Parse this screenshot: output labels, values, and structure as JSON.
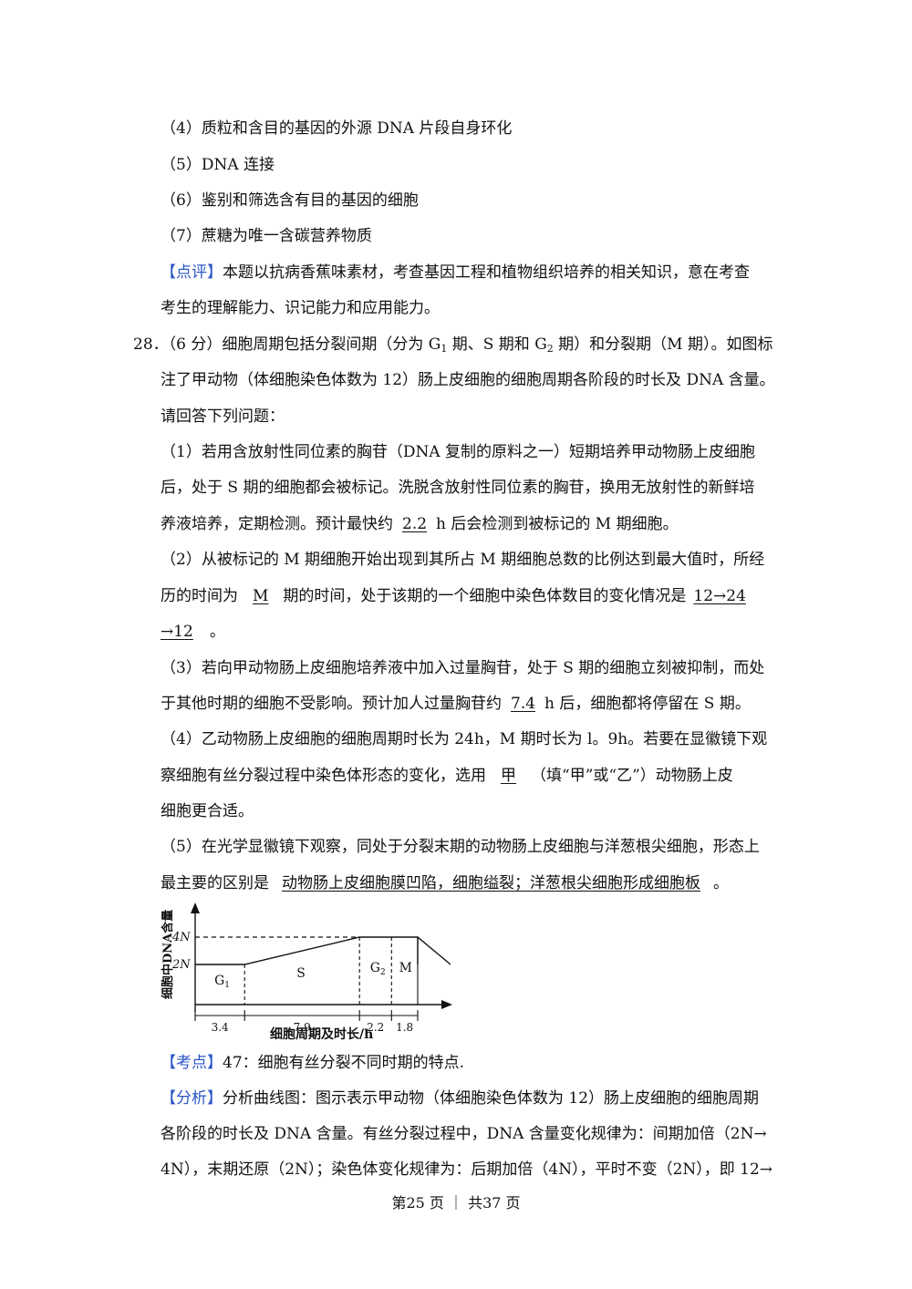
{
  "items_top": [
    "（4）质粒和含目的基因的外源 DNA 片段自身环化",
    "（5）DNA 连接",
    "（6）鉴别和筛选含有目的基因的细胞",
    "（7）蔗糖为唯一含碳营养物质"
  ],
  "comment": {
    "tag": "【点评】",
    "line1": "本题以抗病香蕉味素材，考查基因工程和植物组织培养的相关知识，意在考查",
    "line2": "考生的理解能力、识记能力和应用能力。"
  },
  "question": {
    "number": "28．（6 分）细胞周期包括分裂间期（分为 G",
    "sub1": "1",
    "mid1": " 期、S 期和 G",
    "sub2": "2",
    "end1": " 期）和分裂期（M 期）。如图标",
    "line2": "注了甲动物（体细胞染色体数为 12）肠上皮细胞的细胞周期各阶段的时长及 DNA 含量。",
    "line3": "请回答下列问题："
  },
  "q1": {
    "line1": "（1）若用含放射性同位素的胸苷（DNA 复制的原料之一）短期培养甲动物肠上皮细胞",
    "line2": "后，处于 S 期的细胞都会被标记。洗脱含放射性同位素的胸苷，换用无放射性的新鲜培",
    "line3_pre": "养液培养，定期检测。预计最快约",
    "answer": "2.2",
    "line3_post": "h 后会检测到被标记的 M 期细胞。"
  },
  "q2": {
    "line1": "（2）从被标记的 M 期细胞开始出现到其所占 M 期细胞总数的比例达到最大值时，所经",
    "line2_pre": "历的时间为",
    "answer1": "M",
    "line2_mid": "期的时间，处于该期的一个细胞中染色体数目的变化情况是",
    "answer2a": "12→24",
    "answer2b": "→12",
    "line3_post": "。"
  },
  "q3": {
    "line1": "（3）若向甲动物肠上皮细胞培养液中加入过量胸苷，处于 S 期的细胞立刻被抑制，而处",
    "line2_pre": "于其他时期的细胞不受影响。预计加人过量胸苷约",
    "answer": "7.4",
    "line2_post": "h 后，细胞都将停留在 S 期。"
  },
  "q4": {
    "line1": "（4）乙动物肠上皮细胞的细胞周期时长为 24h，M 期时长为 l。9h。若要在显徽镜下观",
    "line2_pre": "察细胞有丝分裂过程中染色体形态的变化，选用",
    "answer": "甲",
    "line2_post": "（填“甲”或“乙”）动物肠上皮",
    "line3": "细胞更合适。"
  },
  "q5": {
    "line1": "（5）在光学显徽镜下观察，同处于分裂末期的动物肠上皮细胞与洋葱根尖细胞，形态上",
    "line2_pre": "最主要的区别是",
    "answer": "动物肠上皮细胞膜凹陷，细胞缢裂；洋葱根尖细胞形成细胞板",
    "line2_post": "。"
  },
  "chart_data": {
    "type": "line",
    "ylabel": "细胞中DNA含量",
    "xlabel": "细胞周期及时长/h",
    "y_ticks": [
      "4N",
      "2N"
    ],
    "phases": [
      {
        "name": "G1",
        "label_main": "G",
        "label_sub": "1",
        "duration": 3.4,
        "dna_start": 2,
        "dna_end": 2
      },
      {
        "name": "S",
        "label_main": "S",
        "label_sub": "",
        "duration": 7.9,
        "dna_start": 2,
        "dna_end": 4
      },
      {
        "name": "G2",
        "label_main": "G",
        "label_sub": "2",
        "duration": 2.2,
        "dna_start": 4,
        "dna_end": 4
      },
      {
        "name": "M",
        "label_main": "M",
        "label_sub": "",
        "duration": 1.8,
        "dna_start": 4,
        "dna_end": 4
      }
    ],
    "durations_text": [
      "3.4",
      "7.9",
      "2.2",
      "1.8"
    ]
  },
  "kaodian": {
    "tag": "【考点】",
    "text": "47：细胞有丝分裂不同时期的特点."
  },
  "analysis": {
    "tag": "【分析】",
    "line1": "分析曲线图：图示表示甲动物（体细胞染色体数为 12）肠上皮细胞的细胞周期",
    "line2": "各阶段的时长及 DNA 含量。有丝分裂过程中，DNA 含量变化规律为：间期加倍（2N→",
    "line3": "4N），末期还原（2N）；染色体变化规律为：后期加倍（4N），平时不变（2N），即 12→"
  },
  "footer": "第25 页 ｜ 共37 页"
}
